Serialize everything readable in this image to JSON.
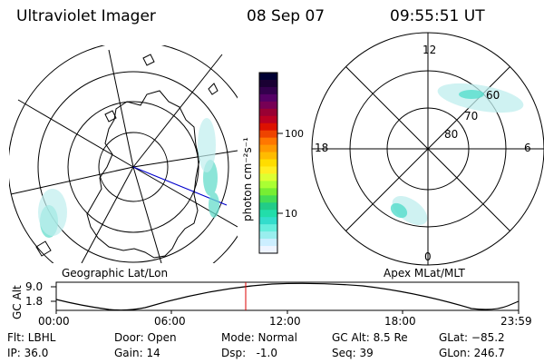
{
  "header": {
    "title": "Ultraviolet Imager",
    "date": "08 Sep 07",
    "time": "09:55:51 UT"
  },
  "geographic_panel": {
    "caption": "Geographic Lat/Lon"
  },
  "apex_panel": {
    "caption": "Apex MLat/MLT",
    "mlt_labels": [
      "12",
      "18",
      "6",
      "0"
    ],
    "mlat_labels": [
      "60",
      "70",
      "80"
    ]
  },
  "colorbar": {
    "unit_label": "photon cm⁻²s⁻¹",
    "tick_labels": [
      "100",
      "10"
    ],
    "colors": [
      "#000033",
      "#1a0033",
      "#33004d",
      "#550066",
      "#770055",
      "#990033",
      "#bb0022",
      "#dd1100",
      "#ee4400",
      "#ff7700",
      "#ff9900",
      "#ffbb00",
      "#ffdd00",
      "#ffee22",
      "#ddff33",
      "#aaff33",
      "#77ee33",
      "#44dd55",
      "#22cc88",
      "#22ddaa",
      "#33ddcc",
      "#66eedd",
      "#99eeee",
      "#cceeff",
      "#eef4ff"
    ]
  },
  "altitude_plot": {
    "ylabel": "GC Alt",
    "yticks": [
      "9.0",
      "1.8"
    ],
    "xticks": [
      "00:00",
      "06:00",
      "12:00",
      "18:00",
      "23:59"
    ],
    "current_marker_color": "#dd0000"
  },
  "info": {
    "flt": "Flt: LBHL",
    "ip": "IP: 36.0",
    "door": "Door: Open",
    "gain": "Gain: 14",
    "mode": "Mode: Normal",
    "dsp": "Dsp:   -1.0",
    "gcalt": "GC Alt: 8.5 Re",
    "seq": "Seq: 39",
    "glat": "GLat: −85.2",
    "glon": "GLon: 246.7"
  }
}
